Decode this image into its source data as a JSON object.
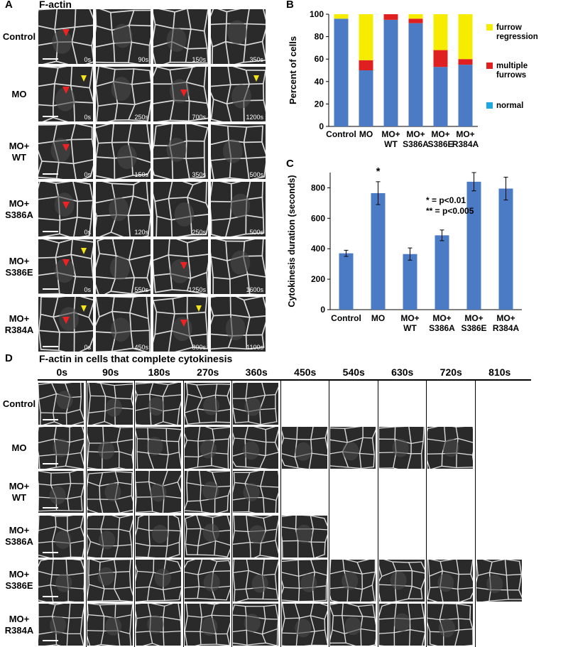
{
  "panel_a": {
    "letter": "A",
    "title": "F-actin",
    "rows": [
      {
        "label": [
          "Control"
        ],
        "times": [
          "0s",
          "90s",
          "150s",
          "350s"
        ]
      },
      {
        "label": [
          "MO"
        ],
        "times": [
          "0s",
          "250s",
          "700s",
          "1200s"
        ]
      },
      {
        "label": [
          "MO+",
          "WT"
        ],
        "times": [
          "0s",
          "150s",
          "350s",
          "500s"
        ]
      },
      {
        "label": [
          "MO+",
          "S386A"
        ],
        "times": [
          "0s",
          "120s",
          "250s",
          "500s"
        ]
      },
      {
        "label": [
          "MO+",
          "S386E"
        ],
        "times": [
          "0s",
          "550s",
          "1250s",
          "1600s"
        ]
      },
      {
        "label": [
          "MO+",
          "R384A"
        ],
        "times": [
          "0s",
          "450s",
          "800s",
          "1100s"
        ]
      }
    ]
  },
  "panel_b": {
    "letter": "B",
    "chart_data": {
      "type": "bar",
      "stacked": true,
      "categories": [
        [
          "Control"
        ],
        [
          "MO"
        ],
        [
          "MO+",
          "WT"
        ],
        [
          "MO+",
          "S386A"
        ],
        [
          "MO+",
          "S386E"
        ],
        [
          "MO+",
          "R384A"
        ]
      ],
      "series": [
        {
          "name": "normal",
          "color": "#4a7bc4",
          "values": [
            96,
            50,
            95,
            92,
            53,
            55
          ]
        },
        {
          "name": "multiple furrows",
          "color": "#e02020",
          "values": [
            0,
            9,
            5,
            4,
            15,
            5
          ]
        },
        {
          "name": "furrow regression",
          "color": "#f5ec00",
          "values": [
            4,
            41,
            0,
            4,
            32,
            40
          ]
        }
      ],
      "legend_labels": [
        [
          "furrow",
          "regression"
        ],
        [
          "multiple",
          "furrows"
        ],
        [
          "normal"
        ]
      ],
      "ylabel": "Percent of cells",
      "yticks": [
        0,
        20,
        40,
        60,
        80,
        100
      ],
      "ylim": [
        0,
        100
      ]
    }
  },
  "panel_c": {
    "letter": "C",
    "chart_data": {
      "type": "bar",
      "categories": [
        [
          "Control"
        ],
        [
          "MO"
        ],
        [
          "MO+",
          "WT"
        ],
        [
          "MO+",
          "S386A"
        ],
        [
          "MO+",
          "S386E"
        ],
        [
          "MO+",
          "R384A"
        ]
      ],
      "values": [
        370,
        765,
        365,
        488,
        840,
        795
      ],
      "errors": [
        20,
        75,
        40,
        35,
        60,
        75
      ],
      "significance": [
        "",
        "*",
        "",
        "",
        "**",
        "**"
      ],
      "color": "#4a7bc4",
      "ylabel": "Cytokinesis duration (seconds)",
      "yticks": [
        0,
        200,
        400,
        600,
        800
      ],
      "ylim": [
        0,
        900
      ],
      "annotations": [
        "* = p<0.01",
        "** = p<0.005"
      ]
    }
  },
  "panel_d": {
    "letter": "D",
    "title": "F-actin in cells that complete cytokinesis",
    "times": [
      "0s",
      "90s",
      "180s",
      "270s",
      "360s",
      "450s",
      "540s",
      "630s",
      "720s",
      "810s"
    ],
    "rows": [
      {
        "label": [
          "Control"
        ],
        "count": 5
      },
      {
        "label": [
          "MO"
        ],
        "count": 9
      },
      {
        "label": [
          "MO+",
          "WT"
        ],
        "count": 5
      },
      {
        "label": [
          "MO+",
          "S386A"
        ],
        "count": 6
      },
      {
        "label": [
          "MO+",
          "S386E"
        ],
        "count": 10
      },
      {
        "label": [
          "MO+",
          "R384A"
        ],
        "count": 9
      }
    ]
  }
}
